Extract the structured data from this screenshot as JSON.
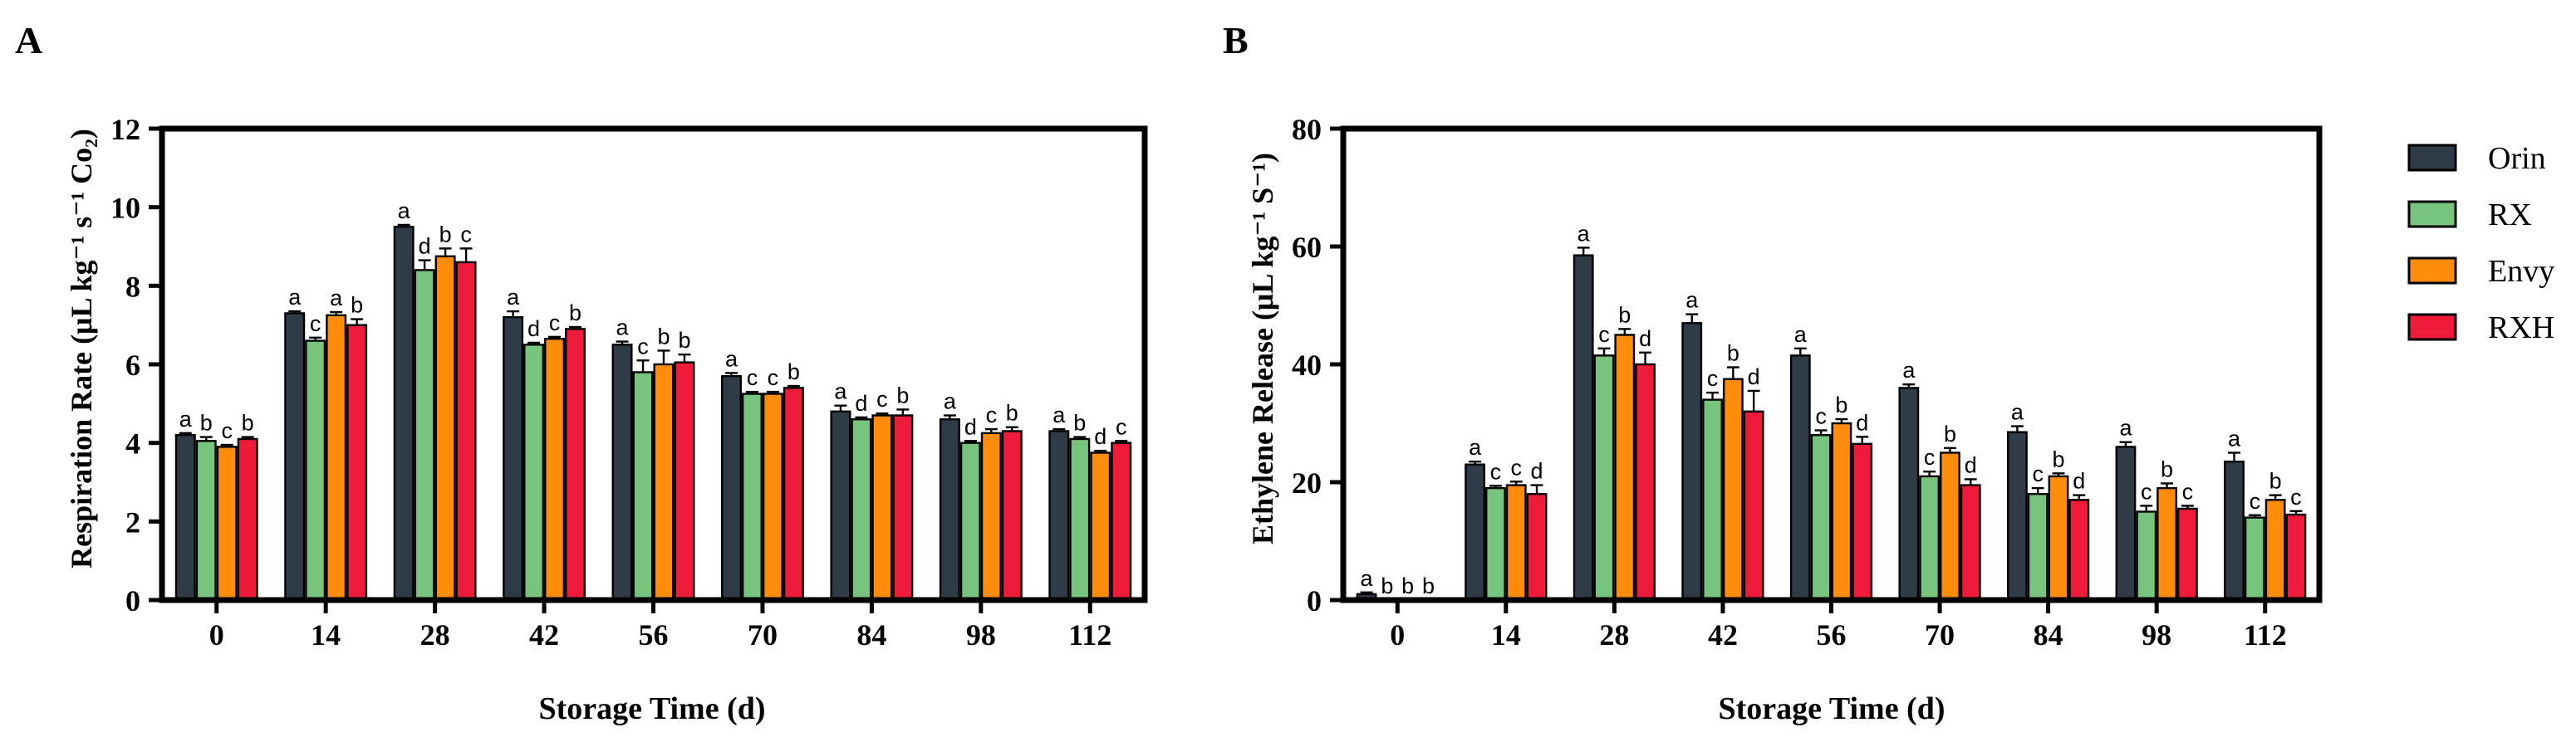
{
  "colors": {
    "Orin": "#2f3b47",
    "RX": "#77c47e",
    "Envy": "#ff8c0a",
    "RXH": "#ee1c3a",
    "axis": "#000000"
  },
  "legend": {
    "title": "",
    "position": "right",
    "entries": [
      "Orin",
      "RX",
      "Envy",
      "RXH"
    ]
  },
  "chart_data": [
    {
      "panel": "A",
      "type": "bar",
      "title": "",
      "xlabel": "Storage Time (d)",
      "ylabel": "Respiration Rate (μL kg⁻¹ s⁻¹ Co₂)",
      "ylim": [
        0,
        12
      ],
      "yticks": [
        0,
        2,
        4,
        6,
        8,
        10,
        12
      ],
      "categories": [
        "0",
        "14",
        "28",
        "42",
        "56",
        "70",
        "84",
        "98",
        "112"
      ],
      "series": [
        {
          "name": "Orin",
          "values": [
            4.2,
            7.3,
            9.5,
            7.2,
            6.5,
            5.7,
            4.8,
            4.6,
            4.3
          ],
          "errors": [
            0.05,
            0.05,
            0.05,
            0.15,
            0.08,
            0.08,
            0.15,
            0.1,
            0.05
          ],
          "letters": [
            "a",
            "a",
            "a",
            "a",
            "a",
            "a",
            "a",
            "a",
            "a"
          ]
        },
        {
          "name": "RX",
          "values": [
            4.05,
            6.6,
            8.4,
            6.5,
            5.8,
            5.25,
            4.6,
            4.0,
            4.1
          ],
          "errors": [
            0.1,
            0.08,
            0.25,
            0.05,
            0.3,
            0.05,
            0.05,
            0.05,
            0.05
          ],
          "letters": [
            "b",
            "c",
            "d",
            "d",
            "c",
            "c",
            "d",
            "d",
            "b"
          ]
        },
        {
          "name": "Envy",
          "values": [
            3.9,
            7.25,
            8.75,
            6.65,
            6.0,
            5.25,
            4.7,
            4.25,
            3.75
          ],
          "errors": [
            0.05,
            0.08,
            0.2,
            0.05,
            0.35,
            0.05,
            0.05,
            0.1,
            0.05
          ],
          "letters": [
            "c",
            "a",
            "b",
            "c",
            "b",
            "c",
            "c",
            "c",
            "d"
          ]
        },
        {
          "name": "RXH",
          "values": [
            4.1,
            7.0,
            8.6,
            6.9,
            6.05,
            5.4,
            4.7,
            4.3,
            4.0
          ],
          "errors": [
            0.05,
            0.15,
            0.35,
            0.05,
            0.2,
            0.05,
            0.15,
            0.1,
            0.05
          ],
          "letters": [
            "b",
            "b",
            "c",
            "b",
            "b",
            "b",
            "b",
            "b",
            "c"
          ]
        }
      ]
    },
    {
      "panel": "B",
      "type": "bar",
      "title": "",
      "xlabel": "Storage Time (d)",
      "ylabel": "Ethylene Release (μL kg⁻¹ S⁻¹)",
      "ylim": [
        0,
        80
      ],
      "yticks": [
        0,
        20,
        40,
        60,
        80
      ],
      "categories": [
        "0",
        "14",
        "28",
        "42",
        "56",
        "70",
        "84",
        "98",
        "112"
      ],
      "series": [
        {
          "name": "Orin",
          "values": [
            1.0,
            23.0,
            58.5,
            47.0,
            41.5,
            36.0,
            28.5,
            26.0,
            23.5
          ],
          "errors": [
            0.3,
            0.5,
            1.3,
            1.5,
            1.2,
            0.6,
            1.0,
            0.8,
            1.5
          ],
          "letters": [
            "a",
            "a",
            "a",
            "a",
            "a",
            "a",
            "a",
            "a",
            "a"
          ]
        },
        {
          "name": "RX",
          "values": [
            0,
            19.0,
            41.5,
            34.0,
            28.0,
            21.0,
            18.0,
            15.0,
            14.0
          ],
          "errors": [
            0,
            0.4,
            1.2,
            1.2,
            0.8,
            0.8,
            1.0,
            1.0,
            0.4
          ],
          "letters": [
            "b",
            "c",
            "c",
            "c",
            "c",
            "c",
            "c",
            "c",
            "c"
          ]
        },
        {
          "name": "Envy",
          "values": [
            0,
            19.5,
            45.0,
            37.5,
            30.0,
            25.0,
            21.0,
            19.0,
            17.0
          ],
          "errors": [
            0,
            0.6,
            1.0,
            2.0,
            0.7,
            0.8,
            0.5,
            0.8,
            0.8
          ],
          "letters": [
            "b",
            "c",
            "b",
            "b",
            "b",
            "b",
            "b",
            "b",
            "b"
          ]
        },
        {
          "name": "RXH",
          "values": [
            0,
            18.0,
            40.0,
            32.0,
            26.5,
            19.5,
            17.0,
            15.5,
            14.5
          ],
          "errors": [
            0,
            1.5,
            2.0,
            3.5,
            1.2,
            1.0,
            0.8,
            0.5,
            0.6
          ],
          "letters": [
            "b",
            "d",
            "d",
            "d",
            "d",
            "d",
            "d",
            "c",
            "c"
          ]
        }
      ]
    }
  ]
}
